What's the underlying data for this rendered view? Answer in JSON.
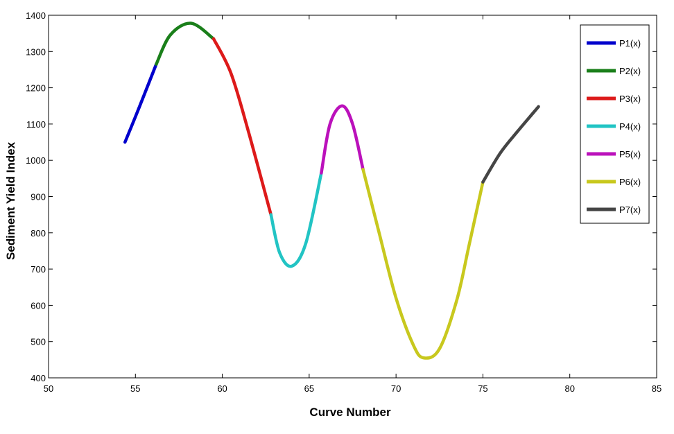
{
  "chart_data": {
    "type": "line",
    "title": "",
    "xlabel": "Curve Number",
    "ylabel": "Sediment Yield Index",
    "xlim": [
      50,
      85
    ],
    "ylim": [
      400,
      1400
    ],
    "xticks": [
      "50",
      "55",
      "60",
      "65",
      "70",
      "75",
      "80",
      "85"
    ],
    "yticks": [
      "400",
      "500",
      "600",
      "700",
      "800",
      "900",
      "1000",
      "1100",
      "1200",
      "1300",
      "1400"
    ],
    "grid": false,
    "legend_position": "top-right",
    "series": [
      {
        "name": "P1(x)",
        "color": "#0000cc",
        "x": [
          54.4,
          55.0,
          55.5,
          56.2
        ],
        "y": [
          1050,
          1120,
          1180,
          1265
        ]
      },
      {
        "name": "P2(x)",
        "color": "#1a7f1a",
        "x": [
          56.2,
          57.0,
          58.2,
          59.5
        ],
        "y": [
          1265,
          1345,
          1378,
          1335
        ]
      },
      {
        "name": "P3(x)",
        "color": "#dd1a1a",
        "x": [
          59.5,
          60.5,
          61.5,
          62.8
        ],
        "y": [
          1335,
          1240,
          1080,
          850
        ]
      },
      {
        "name": "P4(x)",
        "color": "#22c4c4",
        "x": [
          62.8,
          63.3,
          64.0,
          64.8,
          65.7
        ],
        "y": [
          850,
          745,
          708,
          770,
          965
        ]
      },
      {
        "name": "P5(x)",
        "color": "#bb11bb",
        "x": [
          65.7,
          66.2,
          66.9,
          67.5,
          68.1
        ],
        "y": [
          965,
          1100,
          1150,
          1100,
          975
        ]
      },
      {
        "name": "P6(x)",
        "color": "#c8c81e",
        "x": [
          68.1,
          69.0,
          70.0,
          71.0,
          71.6,
          72.5,
          73.5,
          74.2,
          75.0
        ],
        "y": [
          975,
          805,
          620,
          490,
          455,
          480,
          615,
          765,
          940
        ]
      },
      {
        "name": "P7(x)",
        "color": "#454545",
        "x": [
          75.0,
          76.0,
          77.0,
          78.2
        ],
        "y": [
          940,
          1020,
          1080,
          1148
        ]
      }
    ]
  }
}
